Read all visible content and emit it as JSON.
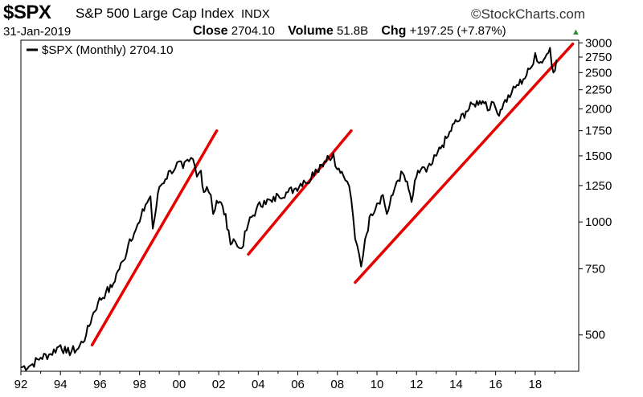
{
  "header": {
    "symbol": "$SPX",
    "name": "S&P 500 Large Cap Index",
    "exchange": "INDX",
    "brand": "©StockCharts.com",
    "date": "31-Jan-2019",
    "close_label": "Close",
    "close_value": "2704.10",
    "volume_label": "Volume",
    "volume_value": "51.8B",
    "chg_label": "Chg",
    "chg_value": "+197.25 (+7.87%)",
    "chg_arrow": "▲",
    "colors": {
      "up": "#2e8b2e",
      "line": "#000000",
      "trend": "#e60000",
      "grid": "#cccccc"
    }
  },
  "chart_data": {
    "type": "line",
    "scale": "log",
    "title": "$SPX S&P 500 Large Cap Index",
    "legend": "$SPX (Monthly) 2704.10",
    "legend_placement": "top-left",
    "ylim": [
      400,
      3050
    ],
    "xlim": [
      1992.0,
      2020.2
    ],
    "y_ticks": [
      500,
      750,
      1000,
      1250,
      1500,
      1750,
      2000,
      2250,
      2500,
      2750,
      3000
    ],
    "x_ticks": [
      "92",
      "94",
      "96",
      "98",
      "00",
      "02",
      "04",
      "06",
      "08",
      "10",
      "12",
      "14",
      "16",
      "18"
    ],
    "grid": false,
    "series": [
      {
        "name": "$SPX (Monthly)",
        "x": [
          1992.0,
          1992.5,
          1993.0,
          1993.5,
          1994.0,
          1994.3,
          1994.9,
          1995.3,
          1995.6,
          1995.9,
          1996.3,
          1996.6,
          1996.9,
          1997.2,
          1997.5,
          1997.8,
          1998.0,
          1998.3,
          1998.55,
          1998.67,
          1998.85,
          1999.0,
          1999.3,
          1999.55,
          1999.8,
          2000.0,
          2000.2,
          2000.5,
          2000.7,
          2000.9,
          2001.1,
          2001.25,
          2001.4,
          2001.6,
          2001.72,
          2001.9,
          2002.2,
          2002.5,
          2002.6,
          2002.75,
          2002.95,
          2003.15,
          2003.5,
          2003.9,
          2004.3,
          2004.7,
          2005.0,
          2005.5,
          2005.9,
          2006.3,
          2006.5,
          2006.9,
          2007.2,
          2007.5,
          2007.65,
          2007.8,
          2008.0,
          2008.3,
          2008.5,
          2008.7,
          2008.9,
          2009.1,
          2009.2,
          2009.4,
          2009.7,
          2010.0,
          2010.3,
          2010.5,
          2010.8,
          2011.0,
          2011.3,
          2011.6,
          2011.75,
          2012.0,
          2012.3,
          2012.5,
          2012.8,
          2013.0,
          2013.3,
          2013.6,
          2013.9,
          2014.2,
          2014.5,
          2014.9,
          2015.2,
          2015.5,
          2015.7,
          2015.9,
          2016.1,
          2016.4,
          2016.8,
          2017.0,
          2017.4,
          2017.8,
          2018.0,
          2018.2,
          2018.5,
          2018.75,
          2018.92,
          2019.08
        ],
        "values": [
          410,
          415,
          435,
          445,
          470,
          448,
          460,
          500,
          560,
          610,
          650,
          670,
          740,
          790,
          900,
          950,
          1000,
          1110,
          1170,
          960,
          1100,
          1240,
          1300,
          1370,
          1390,
          1450,
          1390,
          1450,
          1470,
          1320,
          1370,
          1200,
          1240,
          1180,
          1050,
          1140,
          1100,
          950,
          870,
          900,
          860,
          850,
          990,
          1080,
          1140,
          1130,
          1180,
          1200,
          1230,
          1290,
          1270,
          1380,
          1420,
          1500,
          1460,
          1520,
          1380,
          1330,
          1280,
          1150,
          900,
          820,
          760,
          900,
          1050,
          1120,
          1180,
          1050,
          1180,
          1280,
          1350,
          1220,
          1130,
          1320,
          1400,
          1360,
          1430,
          1500,
          1600,
          1690,
          1830,
          1870,
          1970,
          2060,
          2100,
          2090,
          1990,
          2080,
          1940,
          2070,
          2200,
          2280,
          2400,
          2580,
          2820,
          2650,
          2740,
          2910,
          2500,
          2704.1
        ]
      }
    ],
    "trendlines": [
      {
        "x": [
          1995.6,
          2001.9
        ],
        "y": [
          470,
          1750
        ]
      },
      {
        "x": [
          2003.5,
          2008.7
        ],
        "y": [
          820,
          1750
        ]
      },
      {
        "x": [
          2008.9,
          2019.9
        ],
        "y": [
          690,
          2980
        ]
      }
    ]
  }
}
